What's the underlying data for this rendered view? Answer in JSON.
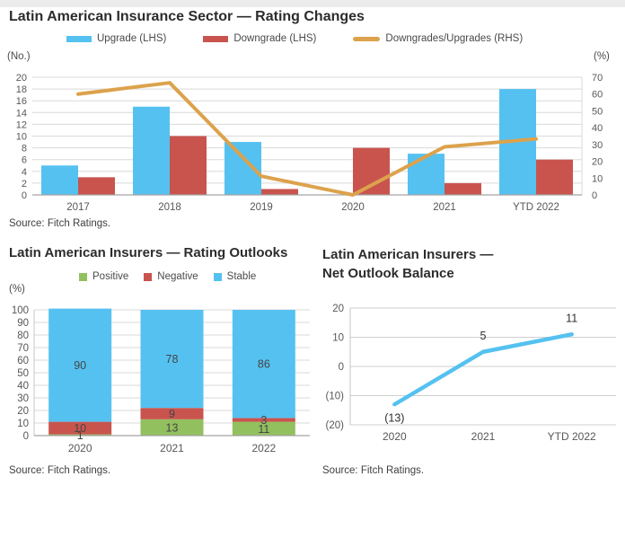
{
  "report": {
    "charts": [
      {
        "title": "Latin American Insurance Sector — Rating Changes",
        "unit_left": "(No.)",
        "unit_right": "(%)",
        "source": "Source: Fitch Ratings.",
        "chart_data": {
          "type": "bar+line",
          "categories": [
            "2017",
            "2018",
            "2019",
            "2020",
            "2021",
            "YTD 2022"
          ],
          "series": [
            {
              "name": "Upgrade (LHS)",
              "type": "bar",
              "axis": "left",
              "color": "#55C1F0",
              "values": [
                5,
                15,
                9,
                0,
                7,
                18
              ]
            },
            {
              "name": "Downgrade (LHS)",
              "type": "bar",
              "axis": "left",
              "color": "#C9544E",
              "values": [
                3,
                10,
                1,
                8,
                2,
                6
              ]
            },
            {
              "name": "Downgrades/Upgrades (RHS)",
              "type": "line",
              "axis": "right",
              "color": "#DCA24C",
              "values": [
                60,
                66.7,
                11.1,
                0,
                28.6,
                33.3
              ]
            }
          ],
          "left_axis": {
            "min": 0,
            "max": 20,
            "step": 2
          },
          "right_axis": {
            "min": 0,
            "max": 70,
            "step": 10
          },
          "grid": true,
          "legend_position": "top"
        }
      },
      {
        "title": "Latin American Insurers — Rating Outlooks",
        "unit_left": "(%)",
        "source": "Source: Fitch Ratings.",
        "chart_data": {
          "type": "stacked-bar",
          "categories": [
            "2020",
            "2021",
            "2022"
          ],
          "series": [
            {
              "name": "Positive",
              "color": "#92C05E",
              "values": [
                1,
                13,
                11
              ]
            },
            {
              "name": "Negative",
              "color": "#C9544E",
              "values": [
                10,
                9,
                3
              ]
            },
            {
              "name": "Stable",
              "color": "#55C1F0",
              "values": [
                90,
                78,
                86
              ]
            }
          ],
          "y_axis": {
            "min": 0,
            "max": 100,
            "step": 10
          },
          "grid": true,
          "legend_position": "top",
          "bar_labels": true
        }
      },
      {
        "title_line1": "Latin American Insurers —",
        "title_line2": "Net Outlook Balance",
        "source": "Source: Fitch Ratings.",
        "chart_data": {
          "type": "line",
          "categories": [
            "2020",
            "2021",
            "YTD 2022"
          ],
          "series": [
            {
              "name": "Net Outlook Balance",
              "color": "#55C1F0",
              "values": [
                -13,
                5,
                11
              ],
              "point_labels": [
                "(13)",
                "5",
                "11"
              ]
            }
          ],
          "y_axis": {
            "min": -20,
            "max": 20,
            "step": 10,
            "tick_labels": [
              "20",
              "10",
              "0",
              "(10)",
              "(20)"
            ]
          },
          "grid": true
        }
      }
    ]
  }
}
